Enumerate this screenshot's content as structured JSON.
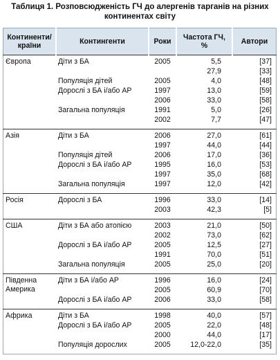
{
  "title": "Таблиця 1. Розповсюдженість ГЧ до алергенів тарганів на різних континентах світу",
  "table": {
    "headers": [
      "Континенти/ країни",
      "Контингенти",
      "Роки",
      "Частота ГЧ, %",
      "Автори"
    ],
    "groups": [
      {
        "country": "Європа",
        "rows": [
          {
            "contingent": "Діти з БА",
            "year": "2005",
            "freq": "5,5",
            "ref": "[37]"
          },
          {
            "freq": "27,9",
            "ref": "[33]"
          },
          {
            "contingent": "Популяція дітей",
            "year": "2005",
            "freq": "4,0",
            "ref": "[48]"
          },
          {
            "contingent": "Дорослі з БА і/або АР",
            "year": "1997",
            "freq": "13,0",
            "ref": "[59]"
          },
          {
            "year": "2006",
            "freq": "33,0",
            "ref": "[58]"
          },
          {
            "contingent": "Загальна популяція",
            "year": "1991",
            "freq": "5,0",
            "ref": "[26]"
          },
          {
            "year": "2002",
            "freq": "7,7",
            "ref": "[47]"
          }
        ]
      },
      {
        "country": "Азія",
        "rows": [
          {
            "contingent": "Діти з БА",
            "year": "2006",
            "freq": "27,0",
            "ref": "[61]"
          },
          {
            "year": "1997",
            "freq": "44,0",
            "ref": "[44]"
          },
          {
            "contingent": "Популяція дітей",
            "year": "2006",
            "freq": "17,0",
            "ref": "[36]"
          },
          {
            "contingent": "Дорослі з БА і/або АР",
            "year": "1995",
            "freq": "16,0",
            "ref": "[53]"
          },
          {
            "year": "1997",
            "freq": "35,0",
            "ref": "[68]"
          },
          {
            "contingent": "Загальна популяція",
            "year": "1997",
            "freq": "12,0",
            "ref": "[42]"
          }
        ]
      },
      {
        "country": "Росія",
        "rows": [
          {
            "contingent": "Дорослі з БА",
            "year": "1996",
            "freq": "33,0",
            "ref": "[14]"
          },
          {
            "year": "2003",
            "freq": "42,3",
            "ref": "[5]"
          }
        ]
      },
      {
        "country": "США",
        "rows": [
          {
            "contingent": "Діти з БА або атопією",
            "year": "2003",
            "freq": "21,0",
            "ref": "[50]"
          },
          {
            "year": "2002",
            "freq": "73,0",
            "ref": "[62]"
          },
          {
            "contingent": "Дорослі з БА і/або АР",
            "year": "2005",
            "freq": "12,5",
            "ref": "[27]"
          },
          {
            "year": "1991",
            "freq": "70,0",
            "ref": "[51]"
          },
          {
            "contingent": "Загальна популяція",
            "year": "2005",
            "freq": "25,0",
            "ref": "[20]"
          }
        ]
      },
      {
        "country": "Південна Америка",
        "rows": [
          {
            "contingent": "Діти з БА і/або АР",
            "year": "1996",
            "freq": "16,0",
            "ref": "[24]"
          },
          {
            "year": "2005",
            "freq": "60,9",
            "ref": "[70]"
          },
          {
            "contingent": "Дорослі з БА і/або АР",
            "year": "2006",
            "freq": "33,0",
            "ref": "[58]"
          }
        ]
      },
      {
        "country": "Африка",
        "rows": [
          {
            "contingent": "Діти з БА",
            "year": "1998",
            "freq": "40,0",
            "ref": "[57]"
          },
          {
            "contingent": "Дорослі з БА і/або АР",
            "year": "2005",
            "freq": "22,0",
            "ref": "[48]"
          },
          {
            "year": "2000",
            "freq": "44,0",
            "ref": "[17]"
          },
          {
            "contingent": "Популяція дорослих",
            "year": "2005",
            "freq": "12,0-22,0",
            "ref": "[35]"
          }
        ]
      }
    ]
  }
}
